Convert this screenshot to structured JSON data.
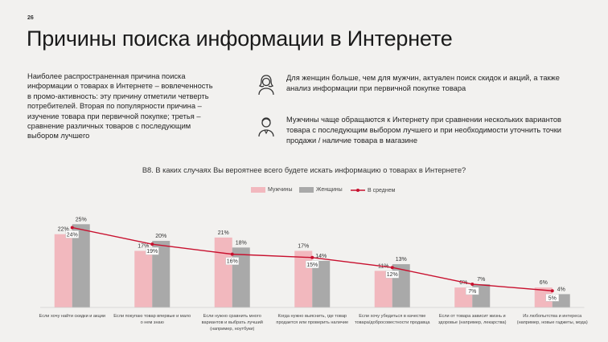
{
  "page_number": "26",
  "title": "Причины поиска информации в Интернете",
  "intro_text": "Наиболее распространенная причина поиска информации о товарах в Интернете – вовлеченность в промо-активность: эту причину отметили четверть потребителей. Вторая по популярности причина – изучение товара при первичной покупке; третья – сравнение различных товаров с последующим выбором лучшего",
  "insights": [
    {
      "icon": "woman-icon",
      "text": "Для женщин больше, чем для мужчин, актуален поиск скидок и акций, а также анализ информации при первичной покупке товара"
    },
    {
      "icon": "man-icon",
      "text": "Мужчины чаще обращаются к Интернету при сравнении нескольких вариантов товара с последующим выбором лучшего и при необходимости уточнить точки продажи / наличие товара в магазине"
    }
  ],
  "question": "B8. В каких случаях Вы вероятнее всего будете искать информацию о товарах в Интернете?",
  "colors": {
    "men": "#f2b8be",
    "women": "#a9a9a9",
    "avg": "#c8102e"
  },
  "chart_data": {
    "type": "bar",
    "categories": [
      [
        "Если хочу найти скидки и акции"
      ],
      [
        "Если покупаю товар впервые и мало",
        "о нем знаю"
      ],
      [
        "Если нужно сравнить много",
        "вариантов и выбрать лучший",
        "(например, ноутбуки)"
      ],
      [
        "Когда нужно выяснить, где товар",
        "продается или проверить наличие"
      ],
      [
        "Если хочу убедиться в качестве",
        "товара/добросовестности продавца"
      ],
      [
        "Если от товара зависит жизнь и",
        "здоровье (например, лекарства)"
      ],
      [
        "Из любопытства и интереса",
        "(например, новые гаджеты, мода)"
      ]
    ],
    "series": [
      {
        "name": "Мужчины",
        "values": [
          22,
          17,
          21,
          17,
          11,
          6,
          6
        ],
        "labels": [
          "22%",
          "17%",
          "21%",
          "17%",
          "11%",
          "6%",
          "6%"
        ]
      },
      {
        "name": "Женщины",
        "values": [
          25,
          20,
          18,
          14,
          13,
          7,
          4
        ],
        "labels": [
          "25%",
          "20%",
          "18%",
          "14%",
          "13%",
          "7%",
          "4%"
        ]
      },
      {
        "name": "В среднем",
        "type": "line",
        "values": [
          24,
          19,
          16,
          15,
          12,
          7,
          5
        ],
        "labels": [
          "24%",
          "19%",
          "16%",
          "15%",
          "12%",
          "7%",
          "5%"
        ]
      }
    ],
    "ylim": [
      0,
      27
    ],
    "legend": "top-center",
    "grid": false
  }
}
